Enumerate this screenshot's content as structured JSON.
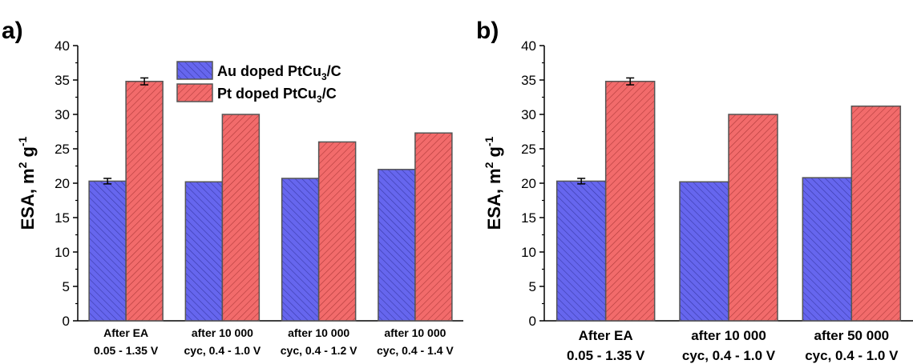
{
  "chart_data": [
    {
      "type": "bar",
      "panel_label": "a)",
      "categories": [
        [
          "After EA",
          "0.05 - 1.35 V"
        ],
        [
          "after 10 000",
          "cyc, 0.4 - 1.0 V"
        ],
        [
          "after 10 000",
          "cyc, 0.4 - 1.2 V"
        ],
        [
          "after 10 000",
          "cyc, 0.4 - 1.4 V"
        ]
      ],
      "series": [
        {
          "name": "Au doped PtCu3/C",
          "legend_main": "Au doped PtCu",
          "legend_sub": "3",
          "legend_tail": "/C",
          "color": "#6666ee",
          "values": [
            20.3,
            20.2,
            20.7,
            22.0
          ],
          "errors": [
            0.4,
            null,
            null,
            null
          ]
        },
        {
          "name": "Pt doped PtCu3/C",
          "legend_main": "Pt doped PtCu",
          "legend_sub": "3",
          "legend_tail": "/C",
          "color": "#f26b6b",
          "values": [
            34.8,
            30.0,
            26.0,
            27.3
          ],
          "errors": [
            0.5,
            null,
            null,
            null
          ]
        }
      ],
      "ylabel": "ESA, m2 g-1",
      "ylabel_parts": {
        "main": "ESA, m",
        "sup1": "2",
        "mid": " g",
        "sup2": "-1"
      },
      "ylim": [
        0,
        40
      ],
      "yticks": [
        "0",
        "5",
        "10",
        "15",
        "20",
        "25",
        "30",
        "35",
        "40"
      ],
      "legend_position": "top-center",
      "grid": false
    },
    {
      "type": "bar",
      "panel_label": "b)",
      "categories": [
        [
          "After EA",
          "0.05 - 1.35 V"
        ],
        [
          "after 10 000",
          "cyc, 0.4 - 1.0 V"
        ],
        [
          "after 50 000",
          "cyc, 0.4 - 1.0 V"
        ]
      ],
      "series": [
        {
          "name": "Au doped PtCu3/C",
          "color": "#6666ee",
          "values": [
            20.3,
            20.2,
            20.8
          ],
          "errors": [
            0.4,
            null,
            null
          ]
        },
        {
          "name": "Pt doped PtCu3/C",
          "color": "#f26b6b",
          "values": [
            34.8,
            30.0,
            31.2
          ],
          "errors": [
            0.5,
            null,
            null
          ]
        }
      ],
      "ylabel": "ESA, m2 g-1",
      "ylabel_parts": {
        "main": "ESA, m",
        "sup1": "2",
        "mid": " g",
        "sup2": "-1"
      },
      "ylim": [
        0,
        40
      ],
      "yticks": [
        "0",
        "5",
        "10",
        "15",
        "20",
        "25",
        "30",
        "35",
        "40"
      ],
      "grid": false
    }
  ]
}
